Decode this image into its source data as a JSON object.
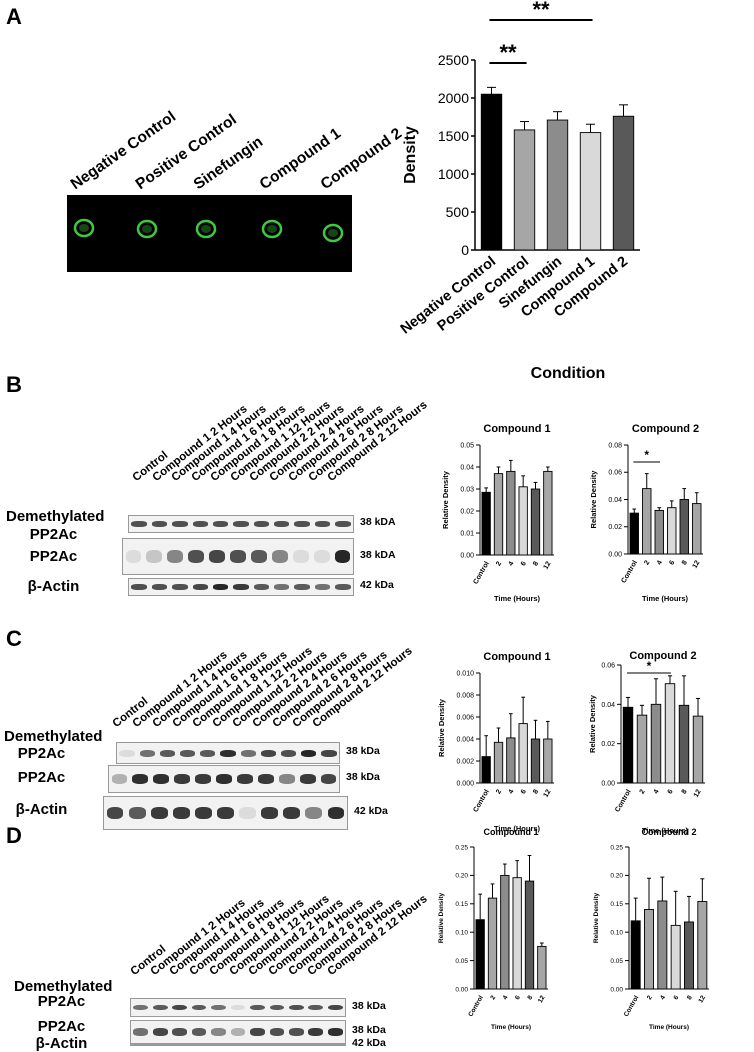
{
  "panels": {
    "a": "A",
    "b": "B",
    "c": "C",
    "d": "D"
  },
  "dot_blot": {
    "labels": [
      "Negative Control",
      "Positive Control",
      "Sinefungin",
      "Compound 1",
      "Compound 2"
    ],
    "spot_color": "#3ec93e"
  },
  "blots": {
    "lane_labels": [
      "Control",
      "Compound 1 2 Hours",
      "Compound 1 4 Hours",
      "Compound 1 6 Hours",
      "Compound 1 8 Hours",
      "Compound 1 12 Hours",
      "Compound 2 2 Hours",
      "Compound 2 4 Hours",
      "Compound 2 6 Hours",
      "Compound 2 8 Hours",
      "Compound 2 12 Hours"
    ],
    "b": {
      "demeth_1": "Demethylated",
      "demeth_2": "PP2Ac",
      "pp2ac": "PP2Ac",
      "actin": "β-Actin",
      "kda_demeth": "38 kDA",
      "kda_pp2ac": "38 kDA",
      "kda_actin": "42 kDa",
      "band_strength": {
        "demeth": [
          0.75,
          0.75,
          0.75,
          0.75,
          0.75,
          0.75,
          0.75,
          0.75,
          0.75,
          0.75,
          0.75
        ],
        "pp2ac": [
          0.1,
          0.2,
          0.5,
          0.75,
          0.8,
          0.75,
          0.7,
          0.5,
          0.1,
          0.1,
          0.95
        ],
        "actin": [
          0.75,
          0.75,
          0.75,
          0.8,
          0.95,
          0.85,
          0.7,
          0.6,
          0.7,
          0.6,
          0.7
        ]
      }
    },
    "c": {
      "demeth_1": "Demethylated",
      "demeth_2": "PP2Ac",
      "pp2ac": "PP2Ac",
      "actin": "β-Actin",
      "kda_demeth": "38 kDa",
      "kda_pp2ac": "38 kDa",
      "kda_actin": "42 kDa",
      "band_strength": {
        "demeth": [
          0.1,
          0.6,
          0.7,
          0.7,
          0.7,
          0.9,
          0.6,
          0.8,
          0.75,
          0.95,
          0.8
        ],
        "pp2ac": [
          0.3,
          0.9,
          0.9,
          0.85,
          0.85,
          0.9,
          0.85,
          0.85,
          0.5,
          0.85,
          0.8
        ],
        "actin": [
          0.8,
          0.7,
          0.85,
          0.85,
          0.85,
          0.85,
          0.1,
          0.85,
          0.85,
          0.5,
          0.9
        ]
      }
    },
    "d": {
      "demeth_1": "Demethylated",
      "demeth_2": "PP2Ac",
      "pp2ac": "PP2Ac",
      "actin": "β-Actin",
      "kda_demeth": "38 kDa",
      "kda_pp2ac": "38 kDa",
      "kda_actin": "42 kDa",
      "band_strength": {
        "demeth": [
          0.6,
          0.7,
          0.8,
          0.7,
          0.6,
          0.1,
          0.7,
          0.7,
          0.75,
          0.7,
          0.8
        ],
        "pp2ac": [
          0.6,
          0.8,
          0.75,
          0.7,
          0.5,
          0.3,
          0.8,
          0.75,
          0.75,
          0.85,
          0.9
        ],
        "actin": [
          0.8,
          0.8,
          0.8,
          0.8,
          0.8,
          0.8,
          0.8,
          0.8,
          0.8,
          0.8,
          0.8
        ]
      }
    }
  },
  "colors": {
    "c1": "#000000",
    "c2": "#a6a6a6",
    "c3": "#8c8c8c",
    "c4": "#d9d9d9",
    "c5": "#595959",
    "c6": "#a6a6a6"
  },
  "chart_data": [
    {
      "id": "A",
      "type": "bar",
      "title": "",
      "xlabel": "Condition",
      "ylabel": "Density",
      "categories": [
        "Negative Control",
        "Positive Control",
        "Sinefungin",
        "Compound 1",
        "Compound 2"
      ],
      "values": [
        2050,
        1580,
        1710,
        1545,
        1760
      ],
      "errors": [
        90,
        110,
        110,
        110,
        150
      ],
      "colors": [
        "#000000",
        "#a6a6a6",
        "#8c8c8c",
        "#d9d9d9",
        "#595959"
      ],
      "ylim": [
        0,
        2500
      ],
      "yticks": [
        0,
        500,
        1000,
        1500,
        2000,
        2500
      ],
      "significance": [
        {
          "from": 0,
          "to": 1,
          "label": "**"
        },
        {
          "from": 0,
          "to": 3,
          "label": "**"
        }
      ]
    },
    {
      "id": "B1",
      "type": "bar",
      "title": "Compound 1",
      "xlabel": "Time (Hours)",
      "ylabel": "Relative Density",
      "categories": [
        "Control",
        "2",
        "4",
        "6",
        "8",
        "12"
      ],
      "values": [
        0.0285,
        0.037,
        0.038,
        0.031,
        0.03,
        0.038
      ],
      "errors": [
        0.002,
        0.003,
        0.005,
        0.005,
        0.003,
        0.002
      ],
      "ylim": [
        0,
        0.05
      ],
      "yticks": [
        "0.00",
        "0.01",
        "0.02",
        "0.03",
        "0.04",
        "0.05"
      ]
    },
    {
      "id": "B2",
      "type": "bar",
      "title": "Compound 2",
      "xlabel": "Time (Hours)",
      "ylabel": "Relative Density",
      "categories": [
        "Control",
        "2",
        "4",
        "6",
        "8",
        "12"
      ],
      "values": [
        0.03,
        0.048,
        0.032,
        0.034,
        0.04,
        0.037
      ],
      "errors": [
        0.003,
        0.011,
        0.002,
        0.005,
        0.008,
        0.008
      ],
      "ylim": [
        0,
        0.08
      ],
      "yticks": [
        "0.00",
        "0.02",
        "0.04",
        "0.06",
        "0.08"
      ],
      "significance": [
        {
          "from": 0,
          "to": 2,
          "label": "*"
        }
      ]
    },
    {
      "id": "C1",
      "type": "bar",
      "title": "Compound 1",
      "xlabel": "Time (Hours)",
      "ylabel": "Relative Density",
      "categories": [
        "Control",
        "2",
        "4",
        "6",
        "8",
        "12"
      ],
      "values": [
        0.0024,
        0.0037,
        0.0041,
        0.0054,
        0.004,
        0.004
      ],
      "errors": [
        0.0019,
        0.0013,
        0.0022,
        0.0024,
        0.0017,
        0.0016
      ],
      "ylim": [
        0,
        0.01
      ],
      "yticks": [
        "0.000",
        "0.002",
        "0.004",
        "0.006",
        "0.008",
        "0.010"
      ]
    },
    {
      "id": "C2",
      "type": "bar",
      "title": "Compound 2",
      "xlabel": "Time (Hours)",
      "ylabel": "Relative Density",
      "categories": [
        "Control",
        "2",
        "4",
        "6",
        "8",
        "12"
      ],
      "values": [
        0.0385,
        0.0345,
        0.04,
        0.0505,
        0.0395,
        0.034
      ],
      "errors": [
        0.005,
        0.005,
        0.013,
        0.004,
        0.015,
        0.009
      ],
      "ylim": [
        0,
        0.06
      ],
      "yticks": [
        "0.00",
        "0.02",
        "0.04",
        "0.06"
      ],
      "significance": [
        {
          "from": 0,
          "to": 3,
          "label": "*"
        }
      ]
    },
    {
      "id": "D1",
      "type": "bar",
      "title": "Compound 1",
      "xlabel": "Time (Hours)",
      "ylabel": "Relative Density",
      "categories": [
        "Control",
        "2",
        "4",
        "6",
        "8",
        "12"
      ],
      "values": [
        0.122,
        0.16,
        0.2,
        0.196,
        0.19,
        0.075
      ],
      "errors": [
        0.045,
        0.025,
        0.02,
        0.03,
        0.045,
        0.006
      ],
      "ylim": [
        0,
        0.25
      ],
      "yticks": [
        "0.00",
        "0.05",
        "0.10",
        "0.15",
        "0.20",
        "0.25"
      ]
    },
    {
      "id": "D2",
      "type": "bar",
      "title": "Compound 2",
      "xlabel": "Time (Hours)",
      "ylabel": "Relative Density",
      "categories": [
        "Control",
        "2",
        "4",
        "6",
        "8",
        "12"
      ],
      "values": [
        0.12,
        0.14,
        0.155,
        0.112,
        0.118,
        0.154
      ],
      "errors": [
        0.04,
        0.055,
        0.042,
        0.06,
        0.045,
        0.04
      ],
      "ylim": [
        0,
        0.25
      ],
      "yticks": [
        "0.00",
        "0.05",
        "0.10",
        "0.15",
        "0.20",
        "0.25"
      ]
    }
  ]
}
